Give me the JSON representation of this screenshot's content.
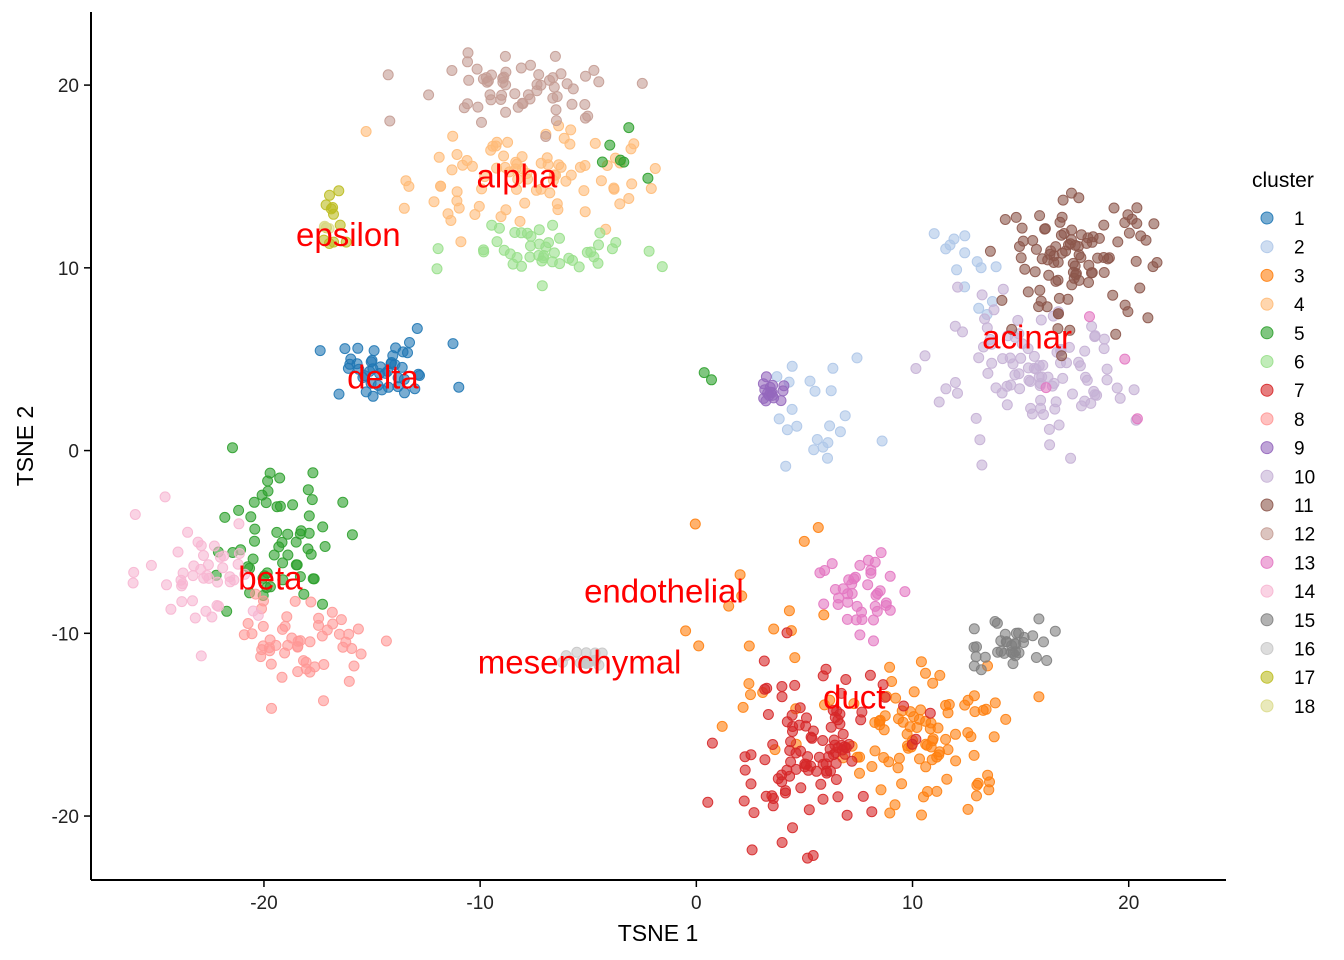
{
  "chart_data": {
    "type": "scatter",
    "xlabel": "TSNE 1",
    "ylabel": "TSNE 2",
    "xlim": [
      -28,
      24.5
    ],
    "ylim": [
      -23.5,
      24
    ],
    "xticks": [
      -20,
      -10,
      0,
      10,
      20
    ],
    "yticks": [
      -20,
      -10,
      0,
      10,
      20
    ],
    "legend": {
      "title": "cluster",
      "position": "right",
      "entries": [
        "1",
        "2",
        "3",
        "4",
        "5",
        "6",
        "7",
        "8",
        "9",
        "10",
        "11",
        "12",
        "13",
        "14",
        "15",
        "16",
        "17",
        "18"
      ]
    },
    "colors": {
      "1": "#1f77b4",
      "2": "#aec7e8",
      "3": "#ff7f0e",
      "4": "#ffbb78",
      "5": "#2ca02c",
      "6": "#98df8a",
      "7": "#d62728",
      "8": "#ff9896",
      "9": "#9467bd",
      "10": "#c5b0d5",
      "11": "#8c564b",
      "12": "#c49c94",
      "13": "#e377c2",
      "14": "#f7b6d2",
      "15": "#7f7f7f",
      "16": "#c7c7c7",
      "17": "#bcbd22",
      "18": "#dbdb8d"
    },
    "point_alpha": 0.6,
    "clusters": [
      {
        "cluster": "1",
        "center": [
          -14.5,
          4.3
        ],
        "spread": [
          1.6,
          0.8
        ],
        "n": 45
      },
      {
        "cluster": "2",
        "center": [
          5.8,
          1.8
        ],
        "spread": [
          1.2,
          1.6
        ],
        "n": 22
      },
      {
        "cluster": "2",
        "center": [
          12.3,
          10.2
        ],
        "spread": [
          0.7,
          1.3
        ],
        "n": 14
      },
      {
        "cluster": "3",
        "center": [
          10.8,
          -15.8
        ],
        "spread": [
          1.9,
          2.0
        ],
        "n": 95
      },
      {
        "cluster": "3",
        "center": [
          3.5,
          -8.5
        ],
        "spread": [
          2.5,
          4.0
        ],
        "n": 22
      },
      {
        "cluster": "4",
        "center": [
          -8.2,
          15.0
        ],
        "spread": [
          2.6,
          1.5
        ],
        "n": 85
      },
      {
        "cluster": "5",
        "center": [
          -19.5,
          -5.0
        ],
        "spread": [
          1.6,
          1.9
        ],
        "n": 60
      },
      {
        "cluster": "5",
        "center": [
          -3.8,
          15.8
        ],
        "spread": [
          0.6,
          0.8
        ],
        "n": 6
      },
      {
        "cluster": "5",
        "center": [
          0.6,
          4.0
        ],
        "spread": [
          0.1,
          0.3
        ],
        "n": 2
      },
      {
        "cluster": "6",
        "center": [
          -7.0,
          11.0
        ],
        "spread": [
          2.0,
          0.8
        ],
        "n": 45
      },
      {
        "cluster": "7",
        "center": [
          5.0,
          -16.5
        ],
        "spread": [
          2.0,
          2.2
        ],
        "n": 110
      },
      {
        "cluster": "8",
        "center": [
          -18.0,
          -10.5
        ],
        "spread": [
          1.4,
          1.2
        ],
        "n": 55
      },
      {
        "cluster": "9",
        "center": [
          3.5,
          3.3
        ],
        "spread": [
          0.35,
          0.35
        ],
        "n": 16
      },
      {
        "cluster": "10",
        "center": [
          15.5,
          3.8
        ],
        "spread": [
          2.3,
          1.8
        ],
        "n": 100
      },
      {
        "cluster": "11",
        "center": [
          17.5,
          10.5
        ],
        "spread": [
          1.8,
          1.6
        ],
        "n": 100
      },
      {
        "cluster": "12",
        "center": [
          -8.0,
          19.8
        ],
        "spread": [
          2.6,
          1.0
        ],
        "n": 60
      },
      {
        "cluster": "13",
        "center": [
          7.8,
          -7.8
        ],
        "spread": [
          1.1,
          1.3
        ],
        "n": 40
      },
      {
        "cluster": "13",
        "center": [
          20.0,
          6.5
        ],
        "spread": [
          1.5,
          2.8
        ],
        "n": 4
      },
      {
        "cluster": "14",
        "center": [
          -23.0,
          -6.5
        ],
        "spread": [
          1.4,
          1.4
        ],
        "n": 45
      },
      {
        "cluster": "15",
        "center": [
          14.5,
          -10.6
        ],
        "spread": [
          1.0,
          0.8
        ],
        "n": 35
      },
      {
        "cluster": "16",
        "center": [
          -4.9,
          -11.3
        ],
        "spread": [
          0.6,
          0.35
        ],
        "n": 14
      },
      {
        "cluster": "17",
        "center": [
          -16.7,
          12.3
        ],
        "spread": [
          0.5,
          0.7
        ],
        "n": 12
      },
      {
        "cluster": "18",
        "center": [
          -17.0,
          12.3
        ],
        "spread": [
          0.3,
          0.3
        ],
        "n": 3
      }
    ],
    "annotations": [
      {
        "text": "alpha",
        "x": -8.3,
        "y": 15.0
      },
      {
        "text": "epsilon",
        "x": -16.1,
        "y": 11.8
      },
      {
        "text": "delta",
        "x": -14.5,
        "y": 4.0
      },
      {
        "text": "acinar",
        "x": 15.3,
        "y": 6.2
      },
      {
        "text": "beta",
        "x": -19.7,
        "y": -7.0
      },
      {
        "text": "endothelial",
        "x": -1.5,
        "y": -7.7
      },
      {
        "text": "mesenchymal",
        "x": -5.4,
        "y": -11.6
      },
      {
        "text": "duct",
        "x": 7.3,
        "y": -13.5
      }
    ]
  }
}
